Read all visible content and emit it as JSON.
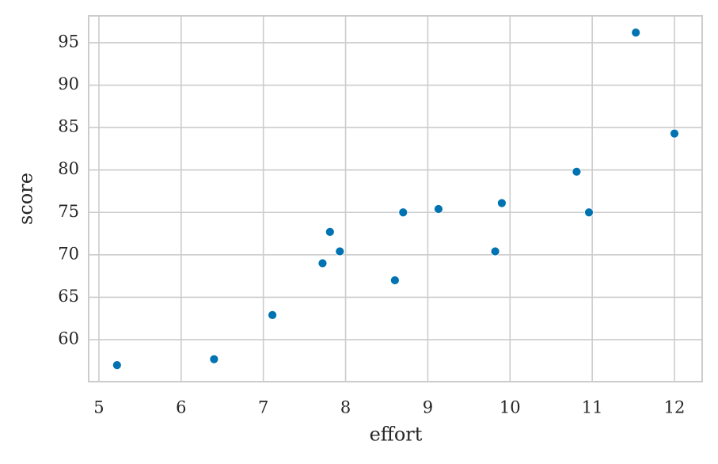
{
  "chart_data": {
    "type": "scatter",
    "x_label": "effort",
    "y_label": "score",
    "x": [
      5.22,
      6.4,
      7.11,
      7.72,
      7.81,
      7.93,
      8.6,
      8.7,
      9.13,
      9.82,
      9.9,
      10.81,
      10.96,
      11.53,
      12.0
    ],
    "series": [
      {
        "color": "#0173b2",
        "values": [
          57.0,
          57.7,
          62.9,
          69.0,
          72.7,
          70.4,
          67.0,
          75.0,
          75.4,
          70.4,
          76.1,
          79.8,
          75.0,
          96.2,
          84.3
        ]
      }
    ],
    "xlim": [
      4.875,
      12.337
    ],
    "ylim": [
      55.05,
      98.17
    ],
    "xticks": [
      5,
      6,
      7,
      8,
      9,
      10,
      11,
      12
    ],
    "yticks": [
      60,
      65,
      70,
      75,
      80,
      85,
      90,
      95
    ],
    "grid": true
  }
}
